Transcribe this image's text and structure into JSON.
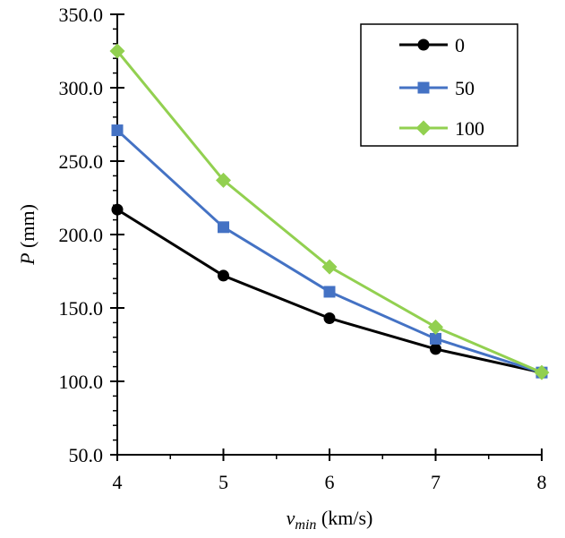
{
  "chart_data": {
    "type": "line",
    "title": "",
    "xlabel_var": "v",
    "xlabel_sub": "min",
    "xlabel_unit": " (km/s)",
    "ylabel_var": "P",
    "ylabel_unit": " (mm)",
    "x": [
      4,
      5,
      6,
      7,
      8
    ],
    "xlim": [
      4,
      8
    ],
    "ylim": [
      50,
      350
    ],
    "xticks": [
      "4",
      "5",
      "6",
      "7",
      "8"
    ],
    "yticks": [
      "50.0",
      "100.0",
      "150.0",
      "200.0",
      "250.0",
      "300.0",
      "350.0"
    ],
    "y_minor_step": 10,
    "grid": false,
    "legend_position": "top-right",
    "series": [
      {
        "name": "0",
        "color": "#000000",
        "marker": "circle",
        "values": [
          217,
          172,
          143,
          122,
          106
        ]
      },
      {
        "name": "50",
        "color": "#4472C4",
        "marker": "square",
        "values": [
          271,
          205,
          161,
          129,
          106
        ]
      },
      {
        "name": "100",
        "color": "#92D050",
        "marker": "diamond",
        "values": [
          325,
          237,
          178,
          137,
          106
        ]
      }
    ]
  }
}
